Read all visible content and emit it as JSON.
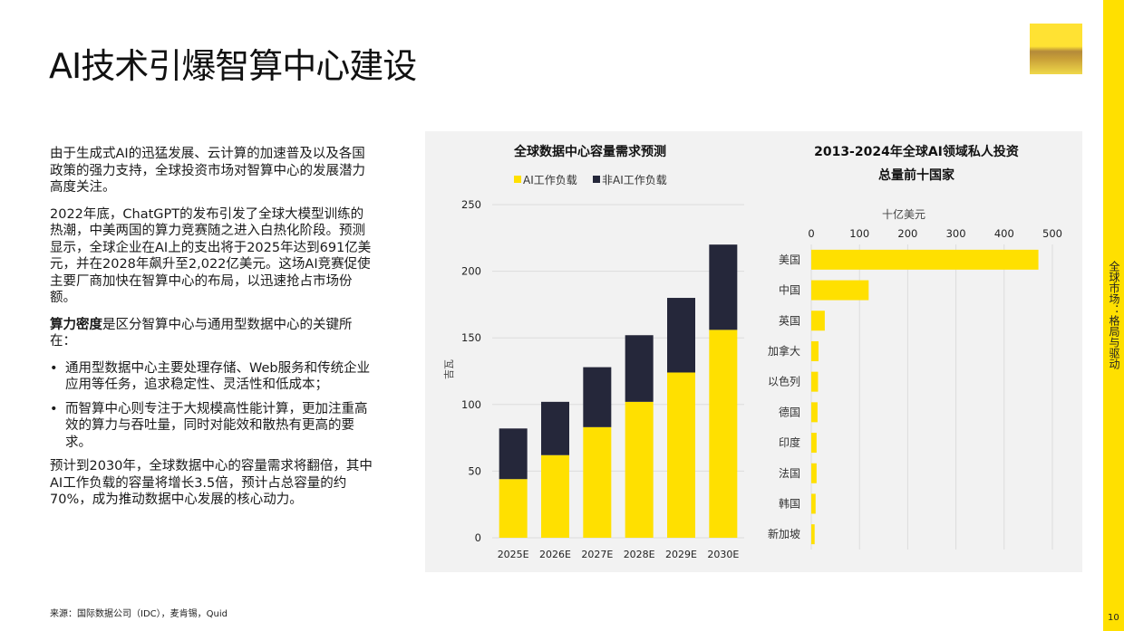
{
  "header": {
    "title": "AI技术引爆智算中心建设"
  },
  "sidebar": {
    "label": "全球市场：格局与驱动",
    "page_number": "10"
  },
  "body": {
    "p1": "由于生成式AI的迅猛发展、云计算的加速普及以及各国政策的强力支持，全球投资市场对智算中心的发展潜力高度关注。",
    "p2": "2022年底，ChatGPT的发布引发了全球大模型训练的热潮，中美两国的算力竞赛随之进入白热化阶段。预测显示，全球企业在AI上的支出将于2025年达到691亿美元，并在2028年飙升至2,022亿美元。这场AI竞赛促使主要厂商加快在智算中心的布局，以迅速抢占市场份额。",
    "p3_bold": "算力密度",
    "p3_rest": "是区分智算中心与通用型数据中心的关键所在：",
    "bullets": [
      "通用型数据中心主要处理存储、Web服务和传统企业应用等任务，追求稳定性、灵活性和低成本；",
      "而智算中心则专注于大规模高性能计算，更加注重高效的算力与吞吐量，同时对能效和散热有更高的要求。"
    ],
    "p4": "预计到2030年，全球数据中心的容量需求将翻倍，其中AI工作负载的容量将增长3.5倍，预计占总容量的约70%，成为推动数据中心发展的核心动力。"
  },
  "footer": {
    "source": "来源：国际数据公司（IDC），麦肯锡，Quid"
  },
  "colors": {
    "accent": "#ffe000",
    "dark": "#25273a",
    "panel": "#f2f2f2"
  },
  "chart_data": [
    {
      "type": "bar",
      "stacked": true,
      "title": "全球数据中心容量需求预测",
      "ylabel": "吉瓦",
      "ylim": [
        0,
        250
      ],
      "yticks": [
        "0",
        "50",
        "100",
        "150",
        "200",
        "250"
      ],
      "categories": [
        "2025E",
        "2026E",
        "2027E",
        "2028E",
        "2029E",
        "2030E"
      ],
      "legend_position": "top",
      "grid": true,
      "series": [
        {
          "name": "AI工作负载",
          "color": "#ffe000",
          "values": [
            44,
            62,
            83,
            102,
            124,
            156
          ]
        },
        {
          "name": "非AI工作负载",
          "color": "#25273a",
          "values": [
            38,
            40,
            45,
            50,
            56,
            64
          ]
        }
      ]
    },
    {
      "type": "bar",
      "orientation": "horizontal",
      "title": "2013-2024年全球AI领域私人投资",
      "title_line2": "总量前十国家",
      "xlabel": "十亿美元",
      "xlim": [
        0,
        500
      ],
      "xticks": [
        "0",
        "100",
        "200",
        "300",
        "400",
        "500"
      ],
      "grid": true,
      "categories": [
        "美国",
        "中国",
        "英国",
        "加拿大",
        "以色列",
        "德国",
        "印度",
        "法国",
        "韩国",
        "新加坡"
      ],
      "values": [
        471,
        119,
        28,
        15,
        14,
        13,
        11,
        11,
        9,
        7
      ],
      "color": "#ffe000"
    }
  ]
}
